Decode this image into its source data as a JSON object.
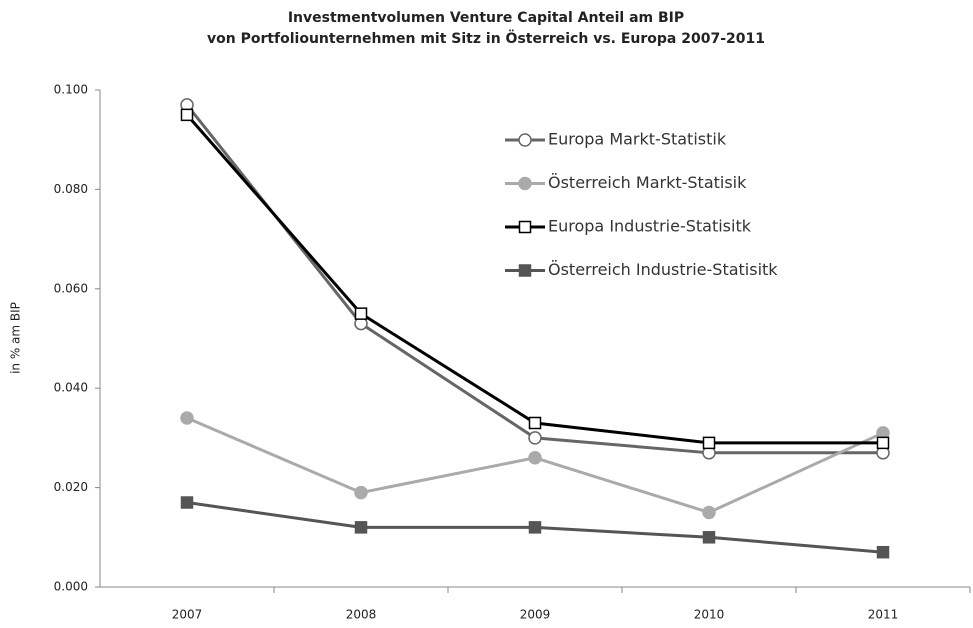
{
  "chart_data": {
    "type": "line",
    "title": "Investmentvolumen Venture Capital Anteil am BIP",
    "subtitle": "von Portfoliounternehmen mit Sitz in Österreich vs. Europa 2007-2011",
    "y_label": "in % am BIP",
    "categories": [
      "2007",
      "2008",
      "2009",
      "2010",
      "2011"
    ],
    "series": [
      {
        "name": "Europa Markt-Statistik",
        "color": "#666666",
        "marker": "circle-open",
        "values": [
          0.097,
          0.053,
          0.03,
          0.027,
          0.027
        ]
      },
      {
        "name": "Österreich Markt-Statisik",
        "color": "#aaaaaa",
        "marker": "circle-filled",
        "values": [
          0.034,
          0.019,
          0.026,
          0.015,
          0.031
        ]
      },
      {
        "name": "Europa Industrie-Statisitk",
        "color": "#000000",
        "marker": "square-open",
        "values": [
          0.095,
          0.055,
          0.033,
          0.029,
          0.029
        ]
      },
      {
        "name": "Österreich Industrie-Statisitk",
        "color": "#555555",
        "marker": "square-filled",
        "values": [
          0.017,
          0.012,
          0.012,
          0.01,
          0.007
        ]
      }
    ],
    "ylim": [
      0,
      0.1
    ],
    "yticks": [
      {
        "value": 0,
        "label": "0.000"
      },
      {
        "value": 0.02,
        "label": "0.020"
      },
      {
        "value": 0.04,
        "label": "0.040"
      },
      {
        "value": 0.06,
        "label": "0.060"
      },
      {
        "value": 0.08,
        "label": "0.080"
      },
      {
        "value": 0.1,
        "label": "0.100"
      }
    ],
    "grid": false,
    "legend": "upper right"
  }
}
